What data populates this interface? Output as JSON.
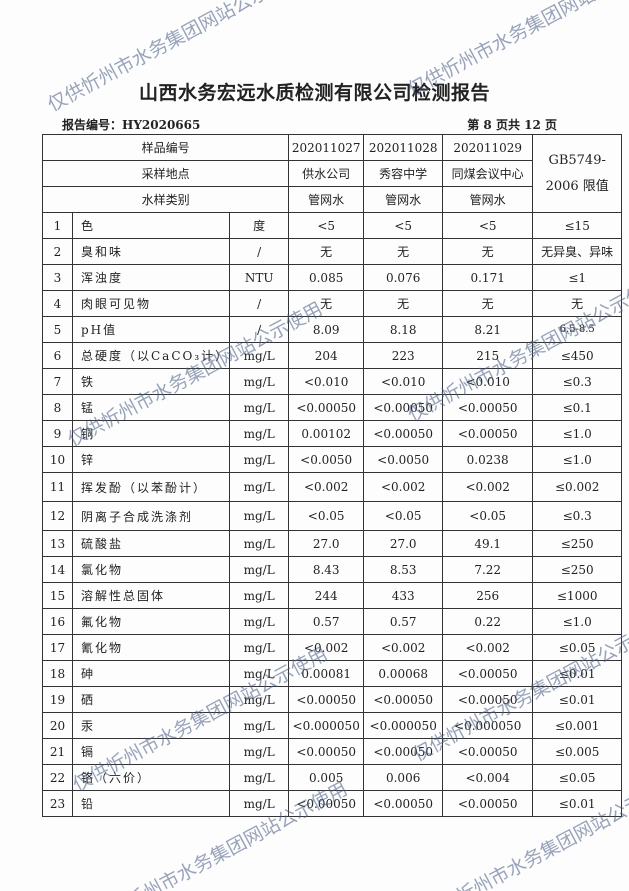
{
  "title": "山西水务宏远水质检测有限公司检测报告",
  "report_no": "报告编号：HY2020665",
  "page_info": "第 8 页共 12 页",
  "header": {
    "sample_no_label": "样品编号",
    "location_label": "采样地点",
    "type_label": "水样类别",
    "standard": "GB5749-2006 限值",
    "samples": [
      {
        "no": "202011027",
        "location": "供水公司",
        "type": "管网水"
      },
      {
        "no": "202011028",
        "location": "秀容中学",
        "type": "管网水"
      },
      {
        "no": "202011029",
        "location": "同煤会议中心",
        "type": "管网水"
      }
    ]
  },
  "rows": [
    {
      "n": "1",
      "item": "色",
      "unit": "度",
      "v": [
        "<5",
        "<5",
        "<5"
      ],
      "limit": "≤15"
    },
    {
      "n": "2",
      "item": "臭和味",
      "unit": "/",
      "v": [
        "无",
        "无",
        "无"
      ],
      "limit": "无异臭、异味"
    },
    {
      "n": "3",
      "item": "浑浊度",
      "unit": "NTU",
      "v": [
        "0.085",
        "0.076",
        "0.171"
      ],
      "limit": "≤1"
    },
    {
      "n": "4",
      "item": "肉眼可见物",
      "unit": "/",
      "v": [
        "无",
        "无",
        "无"
      ],
      "limit": "无"
    },
    {
      "n": "5",
      "item": "pH值",
      "unit": "/",
      "v": [
        "8.09",
        "8.18",
        "8.21"
      ],
      "limit": "6.5-8.5"
    },
    {
      "n": "6",
      "item": "总硬度（以CaCO₃计）",
      "unit": "mg/L",
      "v": [
        "204",
        "223",
        "215"
      ],
      "limit": "≤450"
    },
    {
      "n": "7",
      "item": "铁",
      "unit": "mg/L",
      "v": [
        "<0.010",
        "<0.010",
        "<0.010"
      ],
      "limit": "≤0.3"
    },
    {
      "n": "8",
      "item": "锰",
      "unit": "mg/L",
      "v": [
        "<0.00050",
        "<0.00050",
        "<0.00050"
      ],
      "limit": "≤0.1"
    },
    {
      "n": "9",
      "item": "铜",
      "unit": "mg/L",
      "v": [
        "0.00102",
        "<0.00050",
        "<0.00050"
      ],
      "limit": "≤1.0"
    },
    {
      "n": "10",
      "item": "锌",
      "unit": "mg/L",
      "v": [
        "<0.0050",
        "<0.0050",
        "0.0238"
      ],
      "limit": "≤1.0"
    },
    {
      "n": "11",
      "item": "挥发酚（以苯酚计）",
      "unit": "mg/L",
      "v": [
        "<0.002",
        "<0.002",
        "<0.002"
      ],
      "limit": "≤0.002"
    },
    {
      "n": "12",
      "item": "阴离子合成洗涤剂",
      "unit": "mg/L",
      "v": [
        "<0.05",
        "<0.05",
        "<0.05"
      ],
      "limit": "≤0.3"
    },
    {
      "n": "13",
      "item": "硫酸盐",
      "unit": "mg/L",
      "v": [
        "27.0",
        "27.0",
        "49.1"
      ],
      "limit": "≤250"
    },
    {
      "n": "14",
      "item": "氯化物",
      "unit": "mg/L",
      "v": [
        "8.43",
        "8.53",
        "7.22"
      ],
      "limit": "≤250"
    },
    {
      "n": "15",
      "item": "溶解性总固体",
      "unit": "mg/L",
      "v": [
        "244",
        "433",
        "256"
      ],
      "limit": "≤1000"
    },
    {
      "n": "16",
      "item": "氟化物",
      "unit": "mg/L",
      "v": [
        "0.57",
        "0.57",
        "0.22"
      ],
      "limit": "≤1.0"
    },
    {
      "n": "17",
      "item": "氰化物",
      "unit": "mg/L",
      "v": [
        "<0.002",
        "<0.002",
        "<0.002"
      ],
      "limit": "≤0.05"
    },
    {
      "n": "18",
      "item": "砷",
      "unit": "mg/L",
      "v": [
        "0.00081",
        "0.00068",
        "<0.00050"
      ],
      "limit": "≤0.01"
    },
    {
      "n": "19",
      "item": "硒",
      "unit": "mg/L",
      "v": [
        "<0.00050",
        "<0.00050",
        "<0.00050"
      ],
      "limit": "≤0.01"
    },
    {
      "n": "20",
      "item": "汞",
      "unit": "mg/L",
      "v": [
        "<0.000050",
        "<0.000050",
        "<0.000050"
      ],
      "limit": "≤0.001"
    },
    {
      "n": "21",
      "item": "镉",
      "unit": "mg/L",
      "v": [
        "<0.00050",
        "<0.00050",
        "<0.00050"
      ],
      "limit": "≤0.005"
    },
    {
      "n": "22",
      "item": "铬（六价）",
      "unit": "mg/L",
      "v": [
        "0.005",
        "0.006",
        "<0.004"
      ],
      "limit": "≤0.05"
    },
    {
      "n": "23",
      "item": "铅",
      "unit": "mg/L",
      "v": [
        "<0.00050",
        "<0.00050",
        "<0.00050"
      ],
      "limit": "≤0.01"
    }
  ],
  "watermark": "仅供忻州市水务集团网站公示使用"
}
